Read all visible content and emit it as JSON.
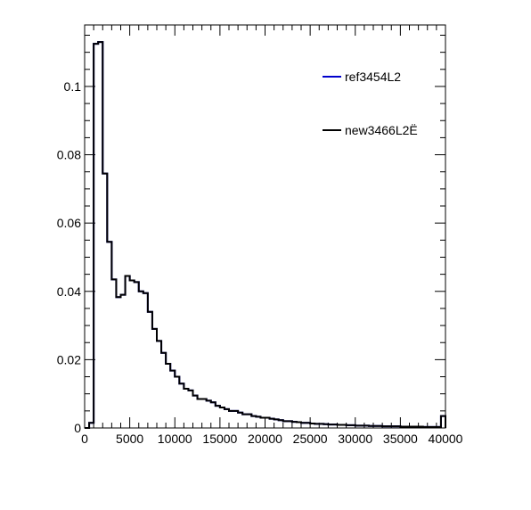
{
  "chart_data": {
    "type": "line",
    "style": "step-histogram",
    "title": "",
    "xlabel": "",
    "ylabel": "",
    "xlim": [
      0,
      40000
    ],
    "ylim": [
      0,
      0.118
    ],
    "bin_width": 500,
    "x_ticks": [
      0,
      5000,
      10000,
      15000,
      20000,
      25000,
      30000,
      35000,
      40000
    ],
    "x_tick_labels": [
      "0",
      "5000",
      "10000",
      "15000",
      "20000",
      "25000",
      "30000",
      "35000",
      "40000"
    ],
    "y_ticks": [
      0,
      0.02,
      0.04,
      0.06,
      0.08,
      0.1
    ],
    "y_tick_labels": [
      "0",
      "0.02",
      "0.04",
      "0.06",
      "0.08",
      "0.1"
    ],
    "grid": false,
    "legend_position": "top-right",
    "series": [
      {
        "name": "ref3454L2",
        "color": "#0000cc",
        "values": [
          0,
          0.0015,
          0.1125,
          0.113,
          0.0745,
          0.0545,
          0.0435,
          0.0383,
          0.039,
          0.0445,
          0.0432,
          0.0427,
          0.04,
          0.0395,
          0.034,
          0.029,
          0.0255,
          0.022,
          0.0188,
          0.0168,
          0.015,
          0.013,
          0.0115,
          0.011,
          0.0095,
          0.0085,
          0.0085,
          0.008,
          0.0075,
          0.0065,
          0.006,
          0.0055,
          0.005,
          0.005,
          0.0045,
          0.004,
          0.004,
          0.0035,
          0.0033,
          0.003,
          0.003,
          0.0027,
          0.0025,
          0.0023,
          0.002,
          0.002,
          0.0018,
          0.0017,
          0.0015,
          0.0015,
          0.0013,
          0.0012,
          0.0012,
          0.0011,
          0.001,
          0.001,
          0.0009,
          0.0009,
          0.0008,
          0.0008,
          0.0007,
          0.0007,
          0.0007,
          0.0006,
          0.0006,
          0.0006,
          0.0005,
          0.0005,
          0.0005,
          0.0005,
          0.0004,
          0.0004,
          0.0004,
          0.0004,
          0.0004,
          0.0003,
          0.0003,
          0.0003,
          0.0003,
          0.0035
        ]
      },
      {
        "name": "new3466L2Ë",
        "color": "#000000",
        "values": [
          0,
          0.0015,
          0.1125,
          0.113,
          0.0745,
          0.0545,
          0.0435,
          0.0383,
          0.039,
          0.0445,
          0.0432,
          0.0427,
          0.04,
          0.0395,
          0.034,
          0.029,
          0.0255,
          0.022,
          0.0188,
          0.0168,
          0.015,
          0.013,
          0.0115,
          0.011,
          0.0095,
          0.0085,
          0.0085,
          0.008,
          0.0075,
          0.0065,
          0.006,
          0.0055,
          0.005,
          0.005,
          0.0045,
          0.004,
          0.004,
          0.0035,
          0.0033,
          0.003,
          0.003,
          0.0027,
          0.0025,
          0.0023,
          0.002,
          0.002,
          0.0018,
          0.0017,
          0.0015,
          0.0015,
          0.0013,
          0.0012,
          0.0012,
          0.0011,
          0.001,
          0.001,
          0.0009,
          0.0009,
          0.0008,
          0.0008,
          0.0007,
          0.0007,
          0.0007,
          0.0006,
          0.0006,
          0.0006,
          0.0005,
          0.0005,
          0.0005,
          0.0005,
          0.0004,
          0.0004,
          0.0004,
          0.0004,
          0.0004,
          0.0003,
          0.0003,
          0.0003,
          0.0003,
          0.0035
        ]
      }
    ]
  }
}
